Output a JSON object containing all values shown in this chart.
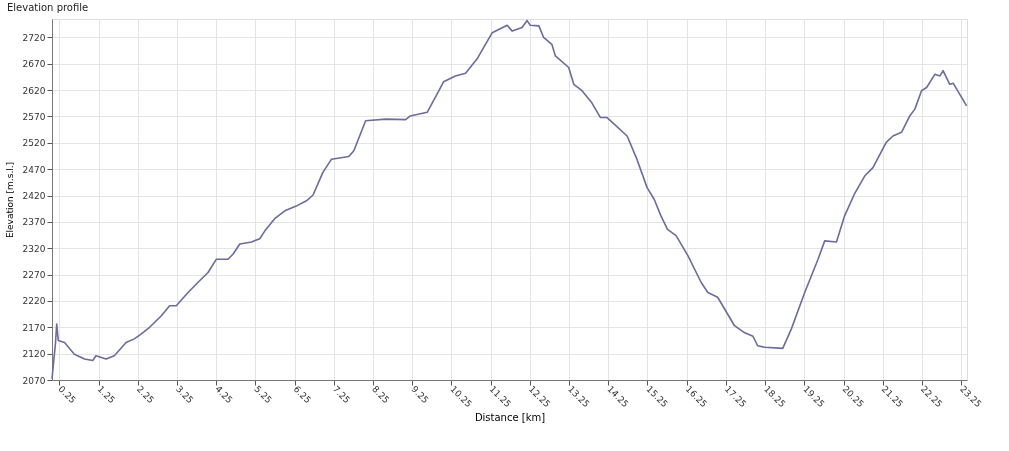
{
  "chart_data": {
    "type": "line",
    "title": "Elevation profile",
    "xlabel": "Distance [km]",
    "ylabel": "Elevation [m.s.l.]",
    "x": [
      0.06,
      0.1,
      0.15,
      0.18,
      0.22,
      0.38,
      0.63,
      0.89,
      1.1,
      1.18,
      1.44,
      1.65,
      1.95,
      2.16,
      2.33,
      2.55,
      2.85,
      3.06,
      3.23,
      3.53,
      3.78,
      4.04,
      4.25,
      4.55,
      4.68,
      4.85,
      5.15,
      5.36,
      5.49,
      5.74,
      6.0,
      6.29,
      6.55,
      6.72,
      6.97,
      7.19,
      7.63,
      7.76,
      8.06,
      8.57,
      9.08,
      9.2,
      9.63,
      9.93,
      10.05,
      10.35,
      10.61,
      10.9,
      11.29,
      11.67,
      11.8,
      12.05,
      12.18,
      12.26,
      12.48,
      12.6,
      12.81,
      12.9,
      13.24,
      13.37,
      13.58,
      13.83,
      14.05,
      14.22,
      14.73,
      14.98,
      15.24,
      15.42,
      15.59,
      15.76,
      15.98,
      16.28,
      16.62,
      16.79,
      17.04,
      17.47,
      17.72,
      17.94,
      18.06,
      18.24,
      18.7,
      18.92,
      19.26,
      19.6,
      19.77,
      20.07,
      20.28,
      20.53,
      20.79,
      21.0,
      21.34,
      21.51,
      21.73,
      21.94,
      22.07,
      22.24,
      22.37,
      22.58,
      22.71,
      22.79,
      22.96,
      23.05,
      23.39
    ],
    "series": [
      {
        "color": "#6b6b9e",
        "values": [
          2072,
          2103,
          2141,
          2176,
          2145,
          2141,
          2119,
          2110,
          2107,
          2116,
          2110,
          2116,
          2141,
          2148,
          2157,
          2170,
          2192,
          2211,
          2211,
          2236,
          2255,
          2274,
          2299,
          2299,
          2309,
          2328,
          2332,
          2338,
          2353,
          2376,
          2391,
          2400,
          2410,
          2421,
          2464,
          2489,
          2494,
          2505,
          2562,
          2565,
          2564,
          2571,
          2578,
          2619,
          2636,
          2647,
          2652,
          2679,
          2729,
          2743,
          2732,
          2739,
          2752,
          2743,
          2742,
          2720,
          2707,
          2685,
          2663,
          2631,
          2619,
          2596,
          2568,
          2568,
          2533,
          2489,
          2435,
          2413,
          2382,
          2356,
          2344,
          2306,
          2255,
          2236,
          2227,
          2173,
          2160,
          2153,
          2135,
          2132,
          2130,
          2167,
          2236,
          2299,
          2334,
          2332,
          2382,
          2423,
          2457,
          2473,
          2521,
          2533,
          2540,
          2571,
          2584,
          2619,
          2625,
          2650,
          2647,
          2657,
          2631,
          2633,
          2590
        ]
      }
    ],
    "xlim": [
      0.06,
      23.4
    ],
    "ylim": [
      2070,
      2755
    ],
    "xticks": [
      0.25,
      1.25,
      2.25,
      3.25,
      4.25,
      5.25,
      6.25,
      7.25,
      8.25,
      9.25,
      10.25,
      11.25,
      12.25,
      13.25,
      14.25,
      15.25,
      16.25,
      17.25,
      18.25,
      19.25,
      20.25,
      21.25,
      22.25,
      23.25
    ],
    "yticks": [
      2070,
      2120,
      2170,
      2220,
      2270,
      2320,
      2370,
      2420,
      2470,
      2520,
      2570,
      2620,
      2670,
      2720
    ],
    "grid": true,
    "legend": false,
    "marker": "none",
    "line_style": "solid"
  }
}
